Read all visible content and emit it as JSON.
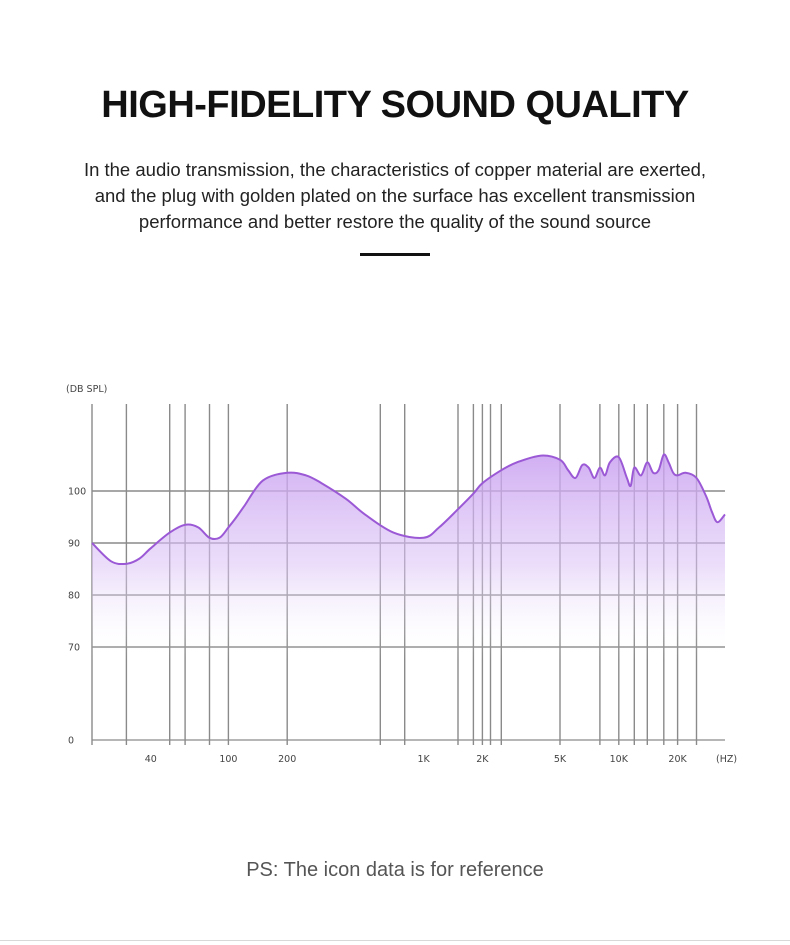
{
  "header": {
    "title": "HIGH-FIDELITY SOUND QUALITY",
    "description_lines": [
      "In the audio transmission, the characteristics of copper material are exerted,",
      "and the plug with golden plated on the surface has excellent transmission",
      "performance and better restore the quality of the sound source"
    ]
  },
  "footer": {
    "note": "PS: The icon data is for reference"
  },
  "chart_data": {
    "type": "area",
    "ylabel": "(DB SPL)",
    "xlabel": "(HZ)",
    "y_ticks": [
      0,
      70,
      80,
      90,
      100
    ],
    "x_ticks": [
      "40",
      "100",
      "200",
      "1K",
      "2K",
      "5K",
      "10K",
      "20K"
    ],
    "grid": true,
    "colors": {
      "line": "#9b59d6",
      "fill": "#c9a0f0",
      "grid": "#8a8a8a"
    },
    "series": [
      {
        "x": [
          20,
          25,
          30,
          35,
          40,
          50,
          60,
          70,
          80,
          90,
          100,
          110,
          120,
          150,
          200,
          250,
          300,
          400,
          500,
          700,
          1000,
          1200,
          1500,
          1800,
          2000,
          2500,
          3000,
          4000,
          5000,
          5500,
          6000,
          6500,
          7000,
          7500,
          8000,
          8500,
          9000,
          10000,
          11000,
          11500,
          12000,
          13000,
          14000,
          15000,
          16000,
          17000,
          18000,
          19000,
          20000,
          22000,
          25000,
          28000,
          30000,
          32000,
          35000
        ],
        "values": [
          90,
          86.5,
          86,
          87,
          89,
          92,
          93.5,
          93,
          91,
          91,
          93,
          95,
          97,
          102,
          103.5,
          103,
          101.5,
          98.5,
          95.5,
          92,
          91,
          93,
          96.5,
          99.5,
          101.5,
          104,
          105.5,
          106.8,
          106,
          104,
          102.5,
          105,
          104.5,
          102.5,
          104.5,
          103,
          105.5,
          106.5,
          102.5,
          101,
          104.5,
          103,
          105.5,
          103.5,
          104,
          107,
          105.5,
          103.5,
          103,
          103.5,
          102.5,
          99,
          96,
          94,
          95.5
        ]
      }
    ]
  }
}
